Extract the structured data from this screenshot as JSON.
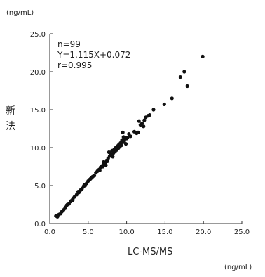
{
  "chart_data": {
    "type": "scatter",
    "title": "",
    "xlabel": "LC-MS/MS",
    "ylabel": "新法",
    "x_unit": "(ng/mL)",
    "y_unit": "(ng/mL)",
    "xlim": [
      0,
      25
    ],
    "ylim": [
      0,
      25
    ],
    "x_ticks": [
      "0.0",
      "5.0",
      "10.0",
      "15.0",
      "20.0",
      "25.0"
    ],
    "y_ticks": [
      "0.0",
      "5.0",
      "10.0",
      "15.0",
      "20.0",
      "25.0"
    ],
    "grid": false,
    "legend": "none",
    "annotations": [
      "n=99",
      "Y=1.115X+0.072",
      "r=0.995"
    ],
    "colors": {
      "marker": "#111111",
      "axis": "#333333"
    },
    "points": [
      [
        0.8,
        1.0
      ],
      [
        1.0,
        0.9
      ],
      [
        1.2,
        1.2
      ],
      [
        1.4,
        1.3
      ],
      [
        1.6,
        1.6
      ],
      [
        1.8,
        1.8
      ],
      [
        2.0,
        2.1
      ],
      [
        2.2,
        2.4
      ],
      [
        2.5,
        2.6
      ],
      [
        2.7,
        2.9
      ],
      [
        3.0,
        3.3
      ],
      [
        3.2,
        3.5
      ],
      [
        3.5,
        3.8
      ],
      [
        3.7,
        4.2
      ],
      [
        4.0,
        4.4
      ],
      [
        4.2,
        4.6
      ],
      [
        4.4,
        4.9
      ],
      [
        4.6,
        5.0
      ],
      [
        4.8,
        5.3
      ],
      [
        5.0,
        5.6
      ],
      [
        5.2,
        5.8
      ],
      [
        5.4,
        6.0
      ],
      [
        5.6,
        6.2
      ],
      [
        5.8,
        6.3
      ],
      [
        6.0,
        6.7
      ],
      [
        6.2,
        6.9
      ],
      [
        6.4,
        7.1
      ],
      [
        6.6,
        7.4
      ],
      [
        6.8,
        7.6
      ],
      [
        7.0,
        7.8
      ],
      [
        7.0,
        8.1
      ],
      [
        7.2,
        8.0
      ],
      [
        7.3,
        7.7
      ],
      [
        7.4,
        8.3
      ],
      [
        7.5,
        8.2
      ],
      [
        7.6,
        8.6
      ],
      [
        7.7,
        9.4
      ],
      [
        7.8,
        8.9
      ],
      [
        7.9,
        9.2
      ],
      [
        8.0,
        9.0
      ],
      [
        8.1,
        9.6
      ],
      [
        8.2,
        8.8
      ],
      [
        8.3,
        9.3
      ],
      [
        8.4,
        9.8
      ],
      [
        8.5,
        9.5
      ],
      [
        8.6,
        10.0
      ],
      [
        8.7,
        9.7
      ],
      [
        8.8,
        10.2
      ],
      [
        8.9,
        9.9
      ],
      [
        9.0,
        10.4
      ],
      [
        9.1,
        10.1
      ],
      [
        9.2,
        10.6
      ],
      [
        9.3,
        10.3
      ],
      [
        9.4,
        11.0
      ],
      [
        9.5,
        10.7
      ],
      [
        9.6,
        11.4
      ],
      [
        9.7,
        10.9
      ],
      [
        9.8,
        11.3
      ],
      [
        9.9,
        10.5
      ],
      [
        9.5,
        12.0
      ],
      [
        10.0,
        11.2
      ],
      [
        10.3,
        11.8
      ],
      [
        11.3,
        11.9
      ],
      [
        11.5,
        12.0
      ],
      [
        11.6,
        13.5
      ],
      [
        12.2,
        12.8
      ],
      [
        12.3,
        13.6
      ],
      [
        12.5,
        14.0
      ],
      [
        12.8,
        14.2
      ],
      [
        13.0,
        14.3
      ],
      [
        13.5,
        15.0
      ],
      [
        14.9,
        15.7
      ],
      [
        15.9,
        16.5
      ],
      [
        17.0,
        19.3
      ],
      [
        17.5,
        20.0
      ],
      [
        17.9,
        18.1
      ],
      [
        19.9,
        22.0
      ],
      [
        3.0,
        3.1
      ],
      [
        2.8,
        3.0
      ],
      [
        4.5,
        5.1
      ],
      [
        5.3,
        5.9
      ],
      [
        6.5,
        7.0
      ],
      [
        7.1,
        7.9
      ],
      [
        8.0,
        9.1
      ],
      [
        9.0,
        10.2
      ],
      [
        1.5,
        1.5
      ],
      [
        2.3,
        2.5
      ],
      [
        3.8,
        4.1
      ],
      [
        4.1,
        4.5
      ],
      [
        5.5,
        6.1
      ],
      [
        6.3,
        7.0
      ],
      [
        6.9,
        7.5
      ],
      [
        8.5,
        9.6
      ],
      [
        9.2,
        10.3
      ],
      [
        10.1,
        11.3
      ],
      [
        11.0,
        12.1
      ],
      [
        12.0,
        13.2
      ],
      [
        10.5,
        11.5
      ],
      [
        11.8,
        13.0
      ]
    ]
  }
}
